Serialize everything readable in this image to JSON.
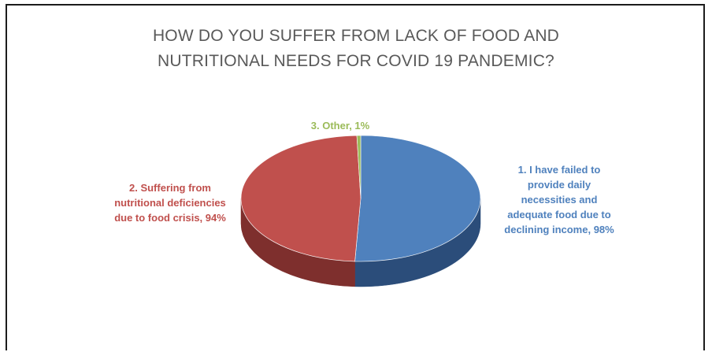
{
  "chart_data": {
    "type": "pie",
    "title_lines": [
      "HOW DO YOU SUFFER FROM LACK OF FOOD AND",
      "NUTRITIONAL NEEDS FOR COVID 19 PANDEMIC?"
    ],
    "slices": [
      {
        "label_lines": [
          "1. I have failed to",
          "provide daily",
          "necessities and",
          "adequate food due to",
          "declining income, 98%"
        ],
        "value": 98,
        "color": "#4f81bd",
        "side_color": "#2b4d7a"
      },
      {
        "label_lines": [
          "2. Suffering from",
          "nutritional deficiencies",
          "due to food crisis, 94%"
        ],
        "value": 94,
        "color": "#c0504d",
        "side_color": "#7e2f2d"
      },
      {
        "label_lines": [
          "3. Other, 1%"
        ],
        "value": 1,
        "color": "#9bbb59",
        "side_color": "#6a8a33"
      }
    ],
    "style": "3d-pie",
    "legend": "none"
  }
}
